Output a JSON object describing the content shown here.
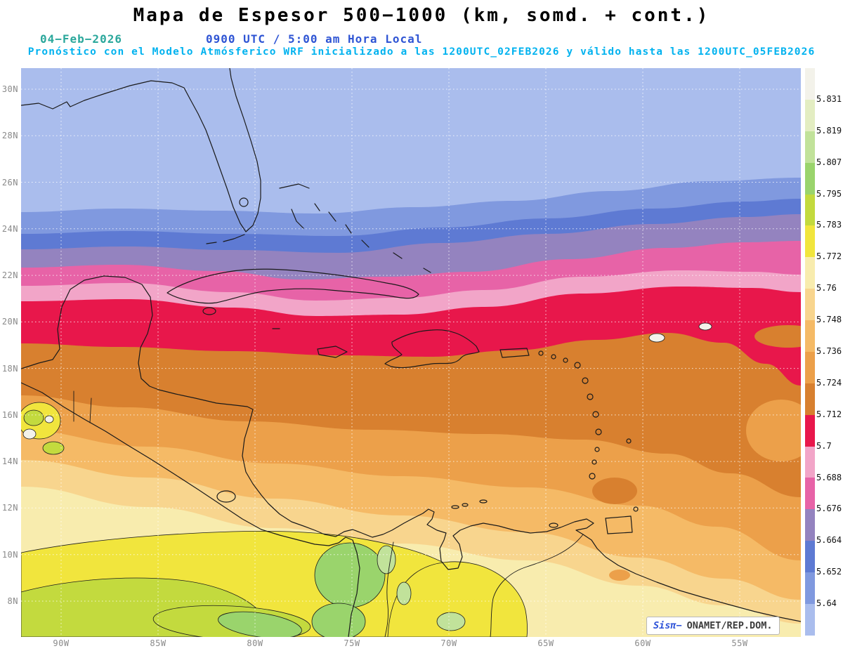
{
  "header": {
    "title": "Mapa de Espesor 500−1000 (km, somd. + cont.)",
    "date": "04−Feb−2026",
    "time": "0900 UTC / 5:00 am Hora Local",
    "forecast_line": "Pronóstico con el Modelo Atmósferico WRF inicializado a las 1200UTC_02FEB2026 y válido hasta las 1200UTC_05FEB2026"
  },
  "axes": {
    "lat_labels": [
      "30N",
      "28N",
      "26N",
      "24N",
      "22N",
      "20N",
      "18N",
      "16N",
      "14N",
      "12N",
      "10N",
      "8N"
    ],
    "lon_labels": [
      "90W",
      "85W",
      "80W",
      "75W",
      "70W",
      "65W",
      "60W",
      "55W"
    ]
  },
  "legend": {
    "boundary_values": [
      "5.831",
      "5.819",
      "5.807",
      "5.795",
      "5.783",
      "5.772",
      "5.76",
      "5.748",
      "5.736",
      "5.724",
      "5.712",
      "5.7",
      "5.688",
      "5.676",
      "5.664",
      "5.652",
      "5.64"
    ],
    "band_colors_top_to_bottom": [
      "#f3f2ea",
      "#e3edc2",
      "#c1e29a",
      "#9ad46c",
      "#c3da3e",
      "#f1e53d",
      "#f8ecae",
      "#f8d58e",
      "#f5ba66",
      "#eca04a",
      "#d8802f",
      "#e8174b",
      "#f2a5c8",
      "#e763a7",
      "#9483bf",
      "#5e7ad3",
      "#8099df",
      "#aabded"
    ]
  },
  "watermark": {
    "brand": "Sisπ−",
    "source": "ONAMET/REP.DOM."
  },
  "accent_colors": {
    "date_teal": "#2aa79b",
    "time_blue": "#2f55d4",
    "forecast_cyan": "#00b2ef"
  }
}
